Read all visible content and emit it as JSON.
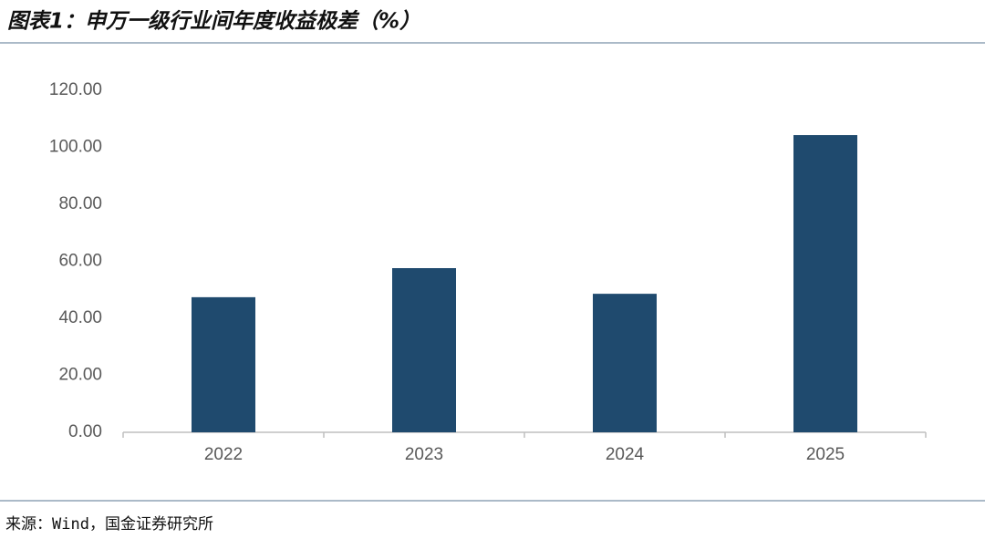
{
  "chart_data": {
    "type": "bar",
    "title": "图表1：申万一级行业间年度收益极差（%）",
    "source": "来源：Wind，国金证券研究所",
    "categories": [
      "2022",
      "2023",
      "2024",
      "2025"
    ],
    "values": [
      47.4,
      57.6,
      48.6,
      104.3
    ],
    "color": "#1f4a6e",
    "ylim": [
      0,
      120
    ],
    "yticks": [
      {
        "value": 0,
        "label": "0.00"
      },
      {
        "value": 20,
        "label": "20.00"
      },
      {
        "value": 40,
        "label": "40.00"
      },
      {
        "value": 60,
        "label": "60.00"
      },
      {
        "value": 80,
        "label": "80.00"
      },
      {
        "value": 100,
        "label": "100.00"
      },
      {
        "value": 120,
        "label": "120.00"
      }
    ],
    "grid": false
  }
}
